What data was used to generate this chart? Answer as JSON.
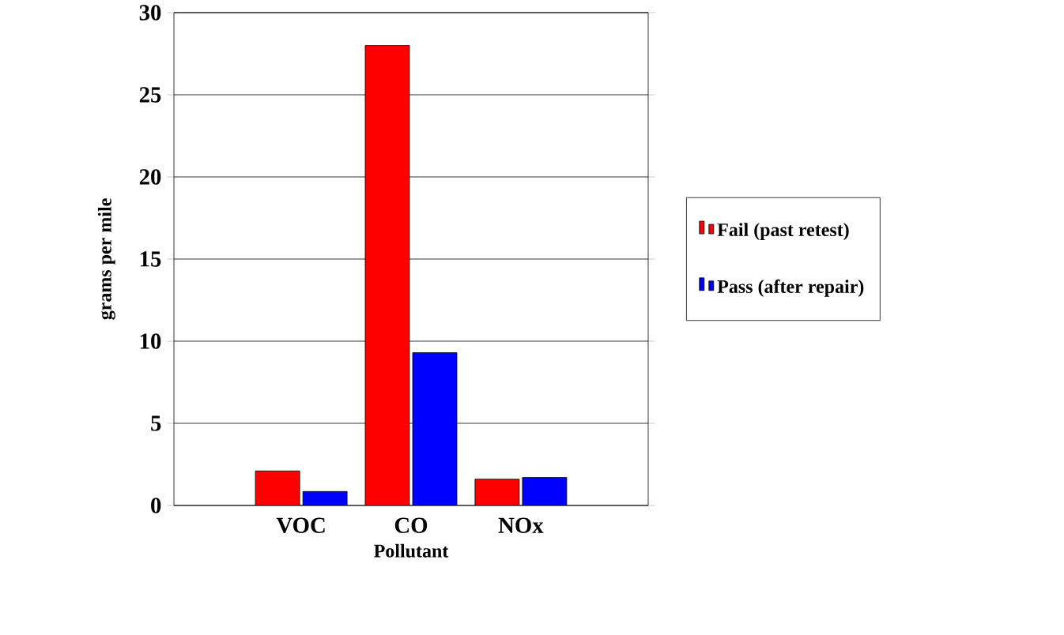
{
  "chart_data": {
    "type": "bar",
    "xlabel": "Pollutant",
    "ylabel": "grams per mile",
    "categories": [
      "VOC",
      "CO",
      "NOx"
    ],
    "series": [
      {
        "name": "Fail (past retest)",
        "color": "#ff0000",
        "values": [
          2.1,
          28.0,
          1.6
        ]
      },
      {
        "name": "Pass (after repair)",
        "color": "#0000ff",
        "values": [
          0.85,
          9.3,
          1.7
        ]
      }
    ],
    "ylim": [
      0,
      30
    ],
    "yticks": [
      0,
      5,
      10,
      15,
      20,
      25,
      30
    ],
    "grid": "y",
    "legend": "right"
  }
}
